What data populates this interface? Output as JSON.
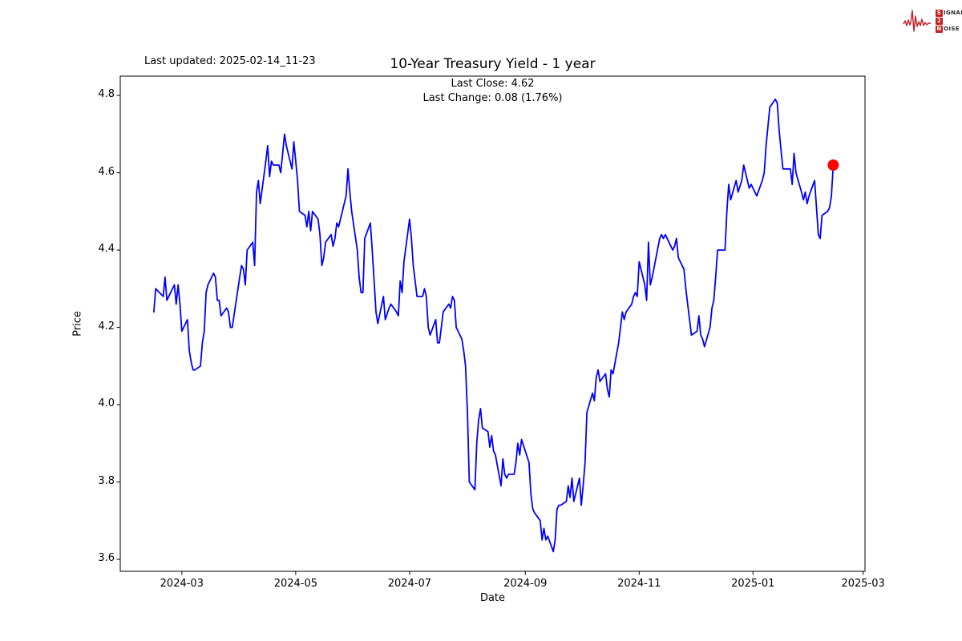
{
  "header": {
    "last_updated": "Last updated: 2025-02-14_11-23",
    "logo": {
      "color": "#c41f24",
      "rows": [
        {
          "boxed": "S",
          "rest": "IGNAL"
        },
        {
          "boxed": "2",
          "rest": ""
        },
        {
          "boxed": "N",
          "rest": "OISE"
        }
      ]
    }
  },
  "chart_data": {
    "type": "line",
    "title": "10-Year Treasury Yield - 1 year",
    "annotation_lines": [
      "Last Close: 4.62",
      "Last Change: 0.08 (1.76%)"
    ],
    "last_close": 4.62,
    "last_change": 0.08,
    "last_change_pct": "1.76%",
    "xlabel": "Date",
    "ylabel": "Price",
    "x_ticks": [
      "2024-03",
      "2024-05",
      "2024-07",
      "2024-09",
      "2024-11",
      "2025-01",
      "2025-03"
    ],
    "y_ticks": [
      3.6,
      3.8,
      4.0,
      4.2,
      4.4,
      4.6,
      4.8
    ],
    "ylim": [
      3.569,
      4.85
    ],
    "xlim": [
      "2024-01-28",
      "2025-03-02"
    ],
    "grid": false,
    "legend": "none",
    "line_color": "#0000ff",
    "marker_color": "#ff0000",
    "series": [
      {
        "name": "10-Year Treasury Yield",
        "color": "#0000ff",
        "points": [
          [
            "2024-02-15",
            4.24
          ],
          [
            "2024-02-16",
            4.3
          ],
          [
            "2024-02-20",
            4.28
          ],
          [
            "2024-02-21",
            4.33
          ],
          [
            "2024-02-22",
            4.27
          ],
          [
            "2024-02-26",
            4.31
          ],
          [
            "2024-02-27",
            4.26
          ],
          [
            "2024-02-28",
            4.31
          ],
          [
            "2024-02-29",
            4.26
          ],
          [
            "2024-03-01",
            4.19
          ],
          [
            "2024-03-04",
            4.22
          ],
          [
            "2024-03-05",
            4.14
          ],
          [
            "2024-03-06",
            4.11
          ],
          [
            "2024-03-07",
            4.09
          ],
          [
            "2024-03-08",
            4.09
          ],
          [
            "2024-03-11",
            4.1
          ],
          [
            "2024-03-12",
            4.16
          ],
          [
            "2024-03-13",
            4.19
          ],
          [
            "2024-03-14",
            4.29
          ],
          [
            "2024-03-15",
            4.31
          ],
          [
            "2024-03-18",
            4.34
          ],
          [
            "2024-03-19",
            4.33
          ],
          [
            "2024-03-20",
            4.27
          ],
          [
            "2024-03-21",
            4.27
          ],
          [
            "2024-03-22",
            4.23
          ],
          [
            "2024-03-25",
            4.25
          ],
          [
            "2024-03-26",
            4.24
          ],
          [
            "2024-03-27",
            4.2
          ],
          [
            "2024-03-28",
            4.2
          ],
          [
            "2024-04-01",
            4.33
          ],
          [
            "2024-04-02",
            4.36
          ],
          [
            "2024-04-03",
            4.35
          ],
          [
            "2024-04-04",
            4.31
          ],
          [
            "2024-04-05",
            4.4
          ],
          [
            "2024-04-08",
            4.42
          ],
          [
            "2024-04-09",
            4.36
          ],
          [
            "2024-04-10",
            4.55
          ],
          [
            "2024-04-11",
            4.58
          ],
          [
            "2024-04-12",
            4.52
          ],
          [
            "2024-04-15",
            4.63
          ],
          [
            "2024-04-16",
            4.67
          ],
          [
            "2024-04-17",
            4.59
          ],
          [
            "2024-04-18",
            4.63
          ],
          [
            "2024-04-19",
            4.62
          ],
          [
            "2024-04-22",
            4.62
          ],
          [
            "2024-04-23",
            4.6
          ],
          [
            "2024-04-24",
            4.65
          ],
          [
            "2024-04-25",
            4.7
          ],
          [
            "2024-04-26",
            4.67
          ],
          [
            "2024-04-29",
            4.61
          ],
          [
            "2024-04-30",
            4.68
          ],
          [
            "2024-05-01",
            4.63
          ],
          [
            "2024-05-02",
            4.58
          ],
          [
            "2024-05-03",
            4.5
          ],
          [
            "2024-05-06",
            4.49
          ],
          [
            "2024-05-07",
            4.46
          ],
          [
            "2024-05-08",
            4.5
          ],
          [
            "2024-05-09",
            4.45
          ],
          [
            "2024-05-10",
            4.5
          ],
          [
            "2024-05-13",
            4.48
          ],
          [
            "2024-05-14",
            4.44
          ],
          [
            "2024-05-15",
            4.36
          ],
          [
            "2024-05-16",
            4.38
          ],
          [
            "2024-05-17",
            4.42
          ],
          [
            "2024-05-20",
            4.44
          ],
          [
            "2024-05-21",
            4.41
          ],
          [
            "2024-05-22",
            4.43
          ],
          [
            "2024-05-23",
            4.47
          ],
          [
            "2024-05-24",
            4.46
          ],
          [
            "2024-05-28",
            4.54
          ],
          [
            "2024-05-29",
            4.61
          ],
          [
            "2024-05-30",
            4.55
          ],
          [
            "2024-05-31",
            4.5
          ],
          [
            "2024-06-03",
            4.4
          ],
          [
            "2024-06-04",
            4.33
          ],
          [
            "2024-06-05",
            4.29
          ],
          [
            "2024-06-06",
            4.29
          ],
          [
            "2024-06-07",
            4.43
          ],
          [
            "2024-06-10",
            4.47
          ],
          [
            "2024-06-11",
            4.4
          ],
          [
            "2024-06-12",
            4.32
          ],
          [
            "2024-06-13",
            4.24
          ],
          [
            "2024-06-14",
            4.21
          ],
          [
            "2024-06-17",
            4.28
          ],
          [
            "2024-06-18",
            4.22
          ],
          [
            "2024-06-20",
            4.25
          ],
          [
            "2024-06-21",
            4.26
          ],
          [
            "2024-06-24",
            4.24
          ],
          [
            "2024-06-25",
            4.23
          ],
          [
            "2024-06-26",
            4.32
          ],
          [
            "2024-06-27",
            4.29
          ],
          [
            "2024-06-28",
            4.37
          ],
          [
            "2024-07-01",
            4.48
          ],
          [
            "2024-07-02",
            4.43
          ],
          [
            "2024-07-03",
            4.36
          ],
          [
            "2024-07-05",
            4.28
          ],
          [
            "2024-07-08",
            4.28
          ],
          [
            "2024-07-09",
            4.3
          ],
          [
            "2024-07-10",
            4.28
          ],
          [
            "2024-07-11",
            4.2
          ],
          [
            "2024-07-12",
            4.18
          ],
          [
            "2024-07-15",
            4.22
          ],
          [
            "2024-07-16",
            4.16
          ],
          [
            "2024-07-17",
            4.16
          ],
          [
            "2024-07-18",
            4.2
          ],
          [
            "2024-07-19",
            4.24
          ],
          [
            "2024-07-22",
            4.26
          ],
          [
            "2024-07-23",
            4.25
          ],
          [
            "2024-07-24",
            4.28
          ],
          [
            "2024-07-25",
            4.27
          ],
          [
            "2024-07-26",
            4.2
          ],
          [
            "2024-07-29",
            4.17
          ],
          [
            "2024-07-30",
            4.14
          ],
          [
            "2024-07-31",
            4.1
          ],
          [
            "2024-08-01",
            3.98
          ],
          [
            "2024-08-02",
            3.8
          ],
          [
            "2024-08-05",
            3.78
          ],
          [
            "2024-08-06",
            3.9
          ],
          [
            "2024-08-07",
            3.96
          ],
          [
            "2024-08-08",
            3.99
          ],
          [
            "2024-08-09",
            3.94
          ],
          [
            "2024-08-12",
            3.93
          ],
          [
            "2024-08-13",
            3.89
          ],
          [
            "2024-08-14",
            3.92
          ],
          [
            "2024-08-15",
            3.88
          ],
          [
            "2024-08-16",
            3.87
          ],
          [
            "2024-08-19",
            3.79
          ],
          [
            "2024-08-20",
            3.86
          ],
          [
            "2024-08-21",
            3.82
          ],
          [
            "2024-08-22",
            3.81
          ],
          [
            "2024-08-23",
            3.82
          ],
          [
            "2024-08-26",
            3.82
          ],
          [
            "2024-08-27",
            3.85
          ],
          [
            "2024-08-28",
            3.9
          ],
          [
            "2024-08-29",
            3.87
          ],
          [
            "2024-08-30",
            3.91
          ],
          [
            "2024-09-03",
            3.85
          ],
          [
            "2024-09-04",
            3.77
          ],
          [
            "2024-09-05",
            3.73
          ],
          [
            "2024-09-06",
            3.72
          ],
          [
            "2024-09-09",
            3.7
          ],
          [
            "2024-09-10",
            3.65
          ],
          [
            "2024-09-11",
            3.68
          ],
          [
            "2024-09-12",
            3.65
          ],
          [
            "2024-09-13",
            3.66
          ],
          [
            "2024-09-16",
            3.62
          ],
          [
            "2024-09-17",
            3.65
          ],
          [
            "2024-09-18",
            3.73
          ],
          [
            "2024-09-19",
            3.74
          ],
          [
            "2024-09-20",
            3.74
          ],
          [
            "2024-09-23",
            3.75
          ],
          [
            "2024-09-24",
            3.79
          ],
          [
            "2024-09-25",
            3.76
          ],
          [
            "2024-09-26",
            3.81
          ],
          [
            "2024-09-27",
            3.75
          ],
          [
            "2024-09-30",
            3.81
          ],
          [
            "2024-10-01",
            3.74
          ],
          [
            "2024-10-02",
            3.79
          ],
          [
            "2024-10-03",
            3.85
          ],
          [
            "2024-10-04",
            3.98
          ],
          [
            "2024-10-07",
            4.03
          ],
          [
            "2024-10-08",
            4.01
          ],
          [
            "2024-10-09",
            4.07
          ],
          [
            "2024-10-10",
            4.09
          ],
          [
            "2024-10-11",
            4.06
          ],
          [
            "2024-10-14",
            4.08
          ],
          [
            "2024-10-15",
            4.04
          ],
          [
            "2024-10-16",
            4.02
          ],
          [
            "2024-10-17",
            4.09
          ],
          [
            "2024-10-18",
            4.08
          ],
          [
            "2024-10-21",
            4.16
          ],
          [
            "2024-10-22",
            4.2
          ],
          [
            "2024-10-23",
            4.24
          ],
          [
            "2024-10-24",
            4.22
          ],
          [
            "2024-10-25",
            4.24
          ],
          [
            "2024-10-28",
            4.26
          ],
          [
            "2024-10-29",
            4.28
          ],
          [
            "2024-10-30",
            4.29
          ],
          [
            "2024-10-31",
            4.28
          ],
          [
            "2024-11-01",
            4.37
          ],
          [
            "2024-11-04",
            4.31
          ],
          [
            "2024-11-05",
            4.27
          ],
          [
            "2024-11-06",
            4.42
          ],
          [
            "2024-11-07",
            4.31
          ],
          [
            "2024-11-08",
            4.33
          ],
          [
            "2024-11-12",
            4.43
          ],
          [
            "2024-11-13",
            4.44
          ],
          [
            "2024-11-14",
            4.43
          ],
          [
            "2024-11-15",
            4.44
          ],
          [
            "2024-11-18",
            4.41
          ],
          [
            "2024-11-19",
            4.4
          ],
          [
            "2024-11-20",
            4.41
          ],
          [
            "2024-11-21",
            4.43
          ],
          [
            "2024-11-22",
            4.38
          ],
          [
            "2024-11-25",
            4.35
          ],
          [
            "2024-11-26",
            4.3
          ],
          [
            "2024-11-27",
            4.26
          ],
          [
            "2024-11-29",
            4.18
          ],
          [
            "2024-12-02",
            4.19
          ],
          [
            "2024-12-03",
            4.23
          ],
          [
            "2024-12-04",
            4.18
          ],
          [
            "2024-12-05",
            4.17
          ],
          [
            "2024-12-06",
            4.15
          ],
          [
            "2024-12-09",
            4.2
          ],
          [
            "2024-12-10",
            4.25
          ],
          [
            "2024-12-11",
            4.27
          ],
          [
            "2024-12-12",
            4.33
          ],
          [
            "2024-12-13",
            4.4
          ],
          [
            "2024-12-16",
            4.4
          ],
          [
            "2024-12-17",
            4.4
          ],
          [
            "2024-12-18",
            4.5
          ],
          [
            "2024-12-19",
            4.57
          ],
          [
            "2024-12-20",
            4.53
          ],
          [
            "2024-12-23",
            4.58
          ],
          [
            "2024-12-24",
            4.55
          ],
          [
            "2024-12-26",
            4.58
          ],
          [
            "2024-12-27",
            4.62
          ],
          [
            "2024-12-30",
            4.56
          ],
          [
            "2024-12-31",
            4.57
          ],
          [
            "2025-01-02",
            4.55
          ],
          [
            "2025-01-03",
            4.54
          ],
          [
            "2025-01-06",
            4.58
          ],
          [
            "2025-01-07",
            4.6
          ],
          [
            "2025-01-08",
            4.67
          ],
          [
            "2025-01-10",
            4.77
          ],
          [
            "2025-01-13",
            4.79
          ],
          [
            "2025-01-14",
            4.78
          ],
          [
            "2025-01-15",
            4.71
          ],
          [
            "2025-01-16",
            4.66
          ],
          [
            "2025-01-17",
            4.61
          ],
          [
            "2025-01-21",
            4.61
          ],
          [
            "2025-01-22",
            4.57
          ],
          [
            "2025-01-23",
            4.65
          ],
          [
            "2025-01-24",
            4.6
          ],
          [
            "2025-01-27",
            4.55
          ],
          [
            "2025-01-28",
            4.53
          ],
          [
            "2025-01-29",
            4.55
          ],
          [
            "2025-01-30",
            4.52
          ],
          [
            "2025-01-31",
            4.54
          ],
          [
            "2025-02-03",
            4.58
          ],
          [
            "2025-02-04",
            4.51
          ],
          [
            "2025-02-05",
            4.44
          ],
          [
            "2025-02-06",
            4.43
          ],
          [
            "2025-02-07",
            4.49
          ],
          [
            "2025-02-10",
            4.5
          ],
          [
            "2025-02-11",
            4.51
          ],
          [
            "2025-02-12",
            4.54
          ],
          [
            "2025-02-13",
            4.62
          ]
        ]
      }
    ]
  }
}
